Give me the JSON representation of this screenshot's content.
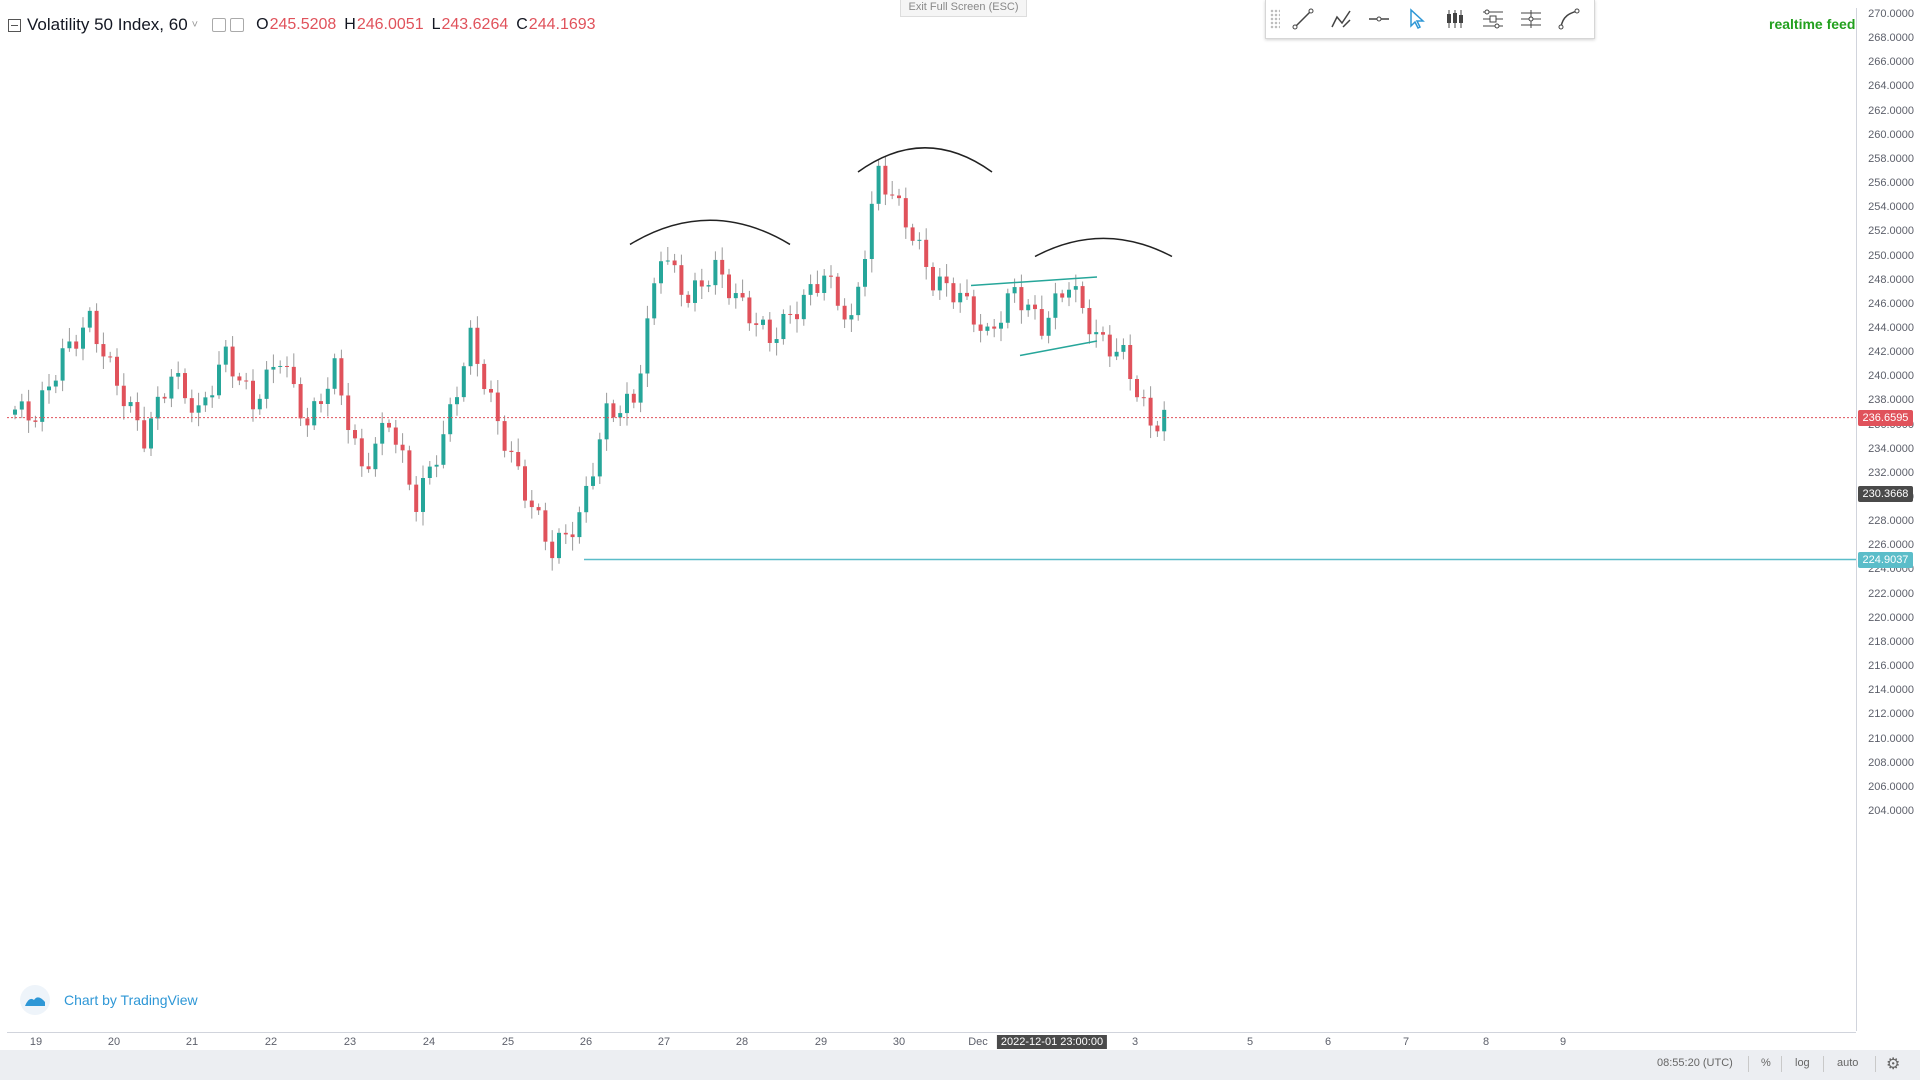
{
  "screen": {
    "legend": {
      "symbol": "Volatility 50 Index, 60",
      "caret": "˅",
      "ohlc": [
        {
          "key": "O",
          "value": "245.5208"
        },
        {
          "key": "H",
          "value": "246.0051"
        },
        {
          "key": "L",
          "value": "243.6264"
        },
        {
          "key": "C",
          "value": "244.1693"
        }
      ]
    },
    "exit_fullscreen": "Exit Full Screen (ESC)",
    "drawing_toolbar": [
      {
        "name": "trend-line-icon"
      },
      {
        "name": "brush-icon"
      },
      {
        "name": "horizontal-line-icon"
      },
      {
        "name": "cursor-arrow-icon"
      },
      {
        "name": "candles-icon"
      },
      {
        "name": "fib-retracement-icon"
      },
      {
        "name": "pitchfork-icon"
      },
      {
        "name": "curve-icon"
      }
    ],
    "realtime_feed": "realtime feed",
    "watermark": "Chart by TradingView",
    "price_scale": {
      "ticks": [
        "270.0000",
        "268.0000",
        "266.0000",
        "264.0000",
        "262.0000",
        "260.0000",
        "258.0000",
        "256.0000",
        "254.0000",
        "252.0000",
        "250.0000",
        "248.0000",
        "246.0000",
        "244.0000",
        "242.0000",
        "240.0000",
        "238.0000",
        "236.0000",
        "234.0000",
        "232.0000",
        "230.0000",
        "228.0000",
        "226.0000",
        "224.0000",
        "222.0000",
        "220.0000",
        "218.0000",
        "216.0000",
        "214.0000",
        "212.0000",
        "210.0000",
        "208.0000",
        "206.0000",
        "204.0000"
      ],
      "current_price": "236.6595",
      "crosshair_price": "230.3668",
      "line_price": "224.9037",
      "colors": {
        "current": "#e0525b",
        "crosshair": "#4a4a4a",
        "line": "#5bbdc9"
      }
    },
    "time_axis": {
      "labels": [
        "19",
        "20",
        "21",
        "22",
        "23",
        "24",
        "25",
        "26",
        "27",
        "28",
        "29",
        "30",
        "Dec",
        "3",
        "5",
        "6",
        "7",
        "8",
        "9"
      ],
      "crosshair_time": "2022-12-01 23:00:00"
    },
    "status_bar": {
      "time": "08:55:20 (UTC)",
      "percent": "%",
      "log": "log",
      "auto": "auto",
      "settings_icon": "gear-icon"
    },
    "colors": {
      "up": "#26a69a",
      "down": "#e0525b",
      "annotation": "#222222",
      "channel": "#26a69a"
    }
  },
  "chart_data": {
    "type": "candlestick",
    "symbol": "Volatility 50 Index",
    "interval": "60",
    "y_range": [
      203,
      271
    ],
    "x_ticks": [
      "19",
      "20",
      "21",
      "22",
      "23",
      "24",
      "25",
      "26",
      "27",
      "28",
      "29",
      "30",
      "Dec",
      "3",
      "5",
      "6",
      "7",
      "8",
      "9"
    ],
    "approx_closes": [
      237.5,
      236.8,
      241.8,
      244.7,
      239.5,
      235.0,
      240.3,
      236.9,
      241.9,
      237.8,
      241.8,
      236.0,
      240.7,
      232.2,
      236.5,
      229.6,
      235.0,
      243.2,
      236.2,
      230.6,
      225.6,
      228.3,
      237.0,
      238.0,
      250.5,
      246.5,
      249.0,
      245.9,
      243.2,
      245.7,
      248.5,
      244.3,
      257.0,
      253.0,
      248.0,
      246.8,
      243.3,
      247.2,
      244.2,
      247.9,
      243.3,
      241.8,
      236.0,
      237.5
    ],
    "current_price": 236.6595,
    "crosshair_price": 230.3668,
    "horizontal_level": 224.9037,
    "crosshair_time": "2022-12-01 23:00:00"
  }
}
